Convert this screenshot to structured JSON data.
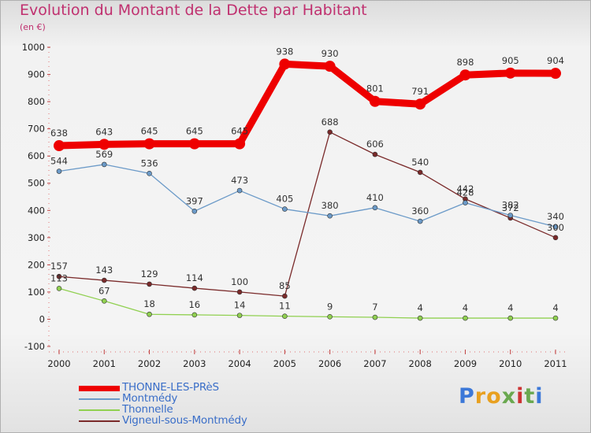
{
  "header": {
    "title": "Evolution du Montant de la Dette par Habitant",
    "subtitle": "(en €)"
  },
  "logo": {
    "text": "Proxiti",
    "letter_colors": [
      "#3c78d8",
      "#e8a020",
      "#e8a020",
      "#6aa84f",
      "#cc3333",
      "#6aa84f",
      "#3c78d8"
    ]
  },
  "chart_data": {
    "type": "line",
    "title": "Evolution du Montant de la Dette par Habitant",
    "subtitle": "(en €)",
    "x": [
      "2000",
      "2001",
      "2002",
      "2003",
      "2004",
      "2005",
      "2006",
      "2007",
      "2008",
      "2009",
      "2010",
      "2011"
    ],
    "ylim": [
      -100,
      1000
    ],
    "yticks": [
      -100,
      0,
      100,
      200,
      300,
      400,
      500,
      600,
      700,
      800,
      900,
      1000
    ],
    "grid": false,
    "legend_position": "bottom-left",
    "series": [
      {
        "name": "THONNE-LES-PRèS",
        "color": "#ee0000",
        "values": [
          638,
          643,
          645,
          645,
          645,
          938,
          930,
          801,
          791,
          898,
          905,
          904
        ]
      },
      {
        "name": "Montmédy",
        "color": "#6b9ac8",
        "values": [
          544,
          569,
          536,
          397,
          473,
          405,
          380,
          410,
          360,
          428,
          382,
          340
        ]
      },
      {
        "name": "Thonnelle",
        "color": "#90d050",
        "values": [
          113,
          67,
          18,
          16,
          14,
          11,
          9,
          7,
          4,
          4,
          4,
          4
        ]
      },
      {
        "name": "Vigneul-sous-Montmédy",
        "color": "#7a2a2a",
        "values": [
          157,
          143,
          129,
          114,
          100,
          85,
          688,
          606,
          540,
          442,
          372,
          300
        ]
      }
    ]
  }
}
